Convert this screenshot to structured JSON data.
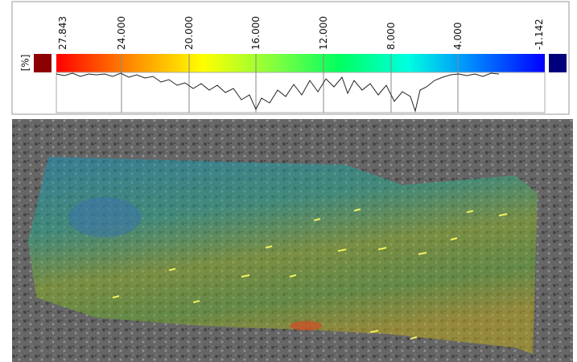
{
  "colorbar": {
    "unit": "[%]",
    "tick_labels": [
      "27.843",
      "24.000",
      "20.000",
      "16.000",
      "12.000",
      "8.000",
      "4.000",
      "-1.142"
    ]
  }
}
